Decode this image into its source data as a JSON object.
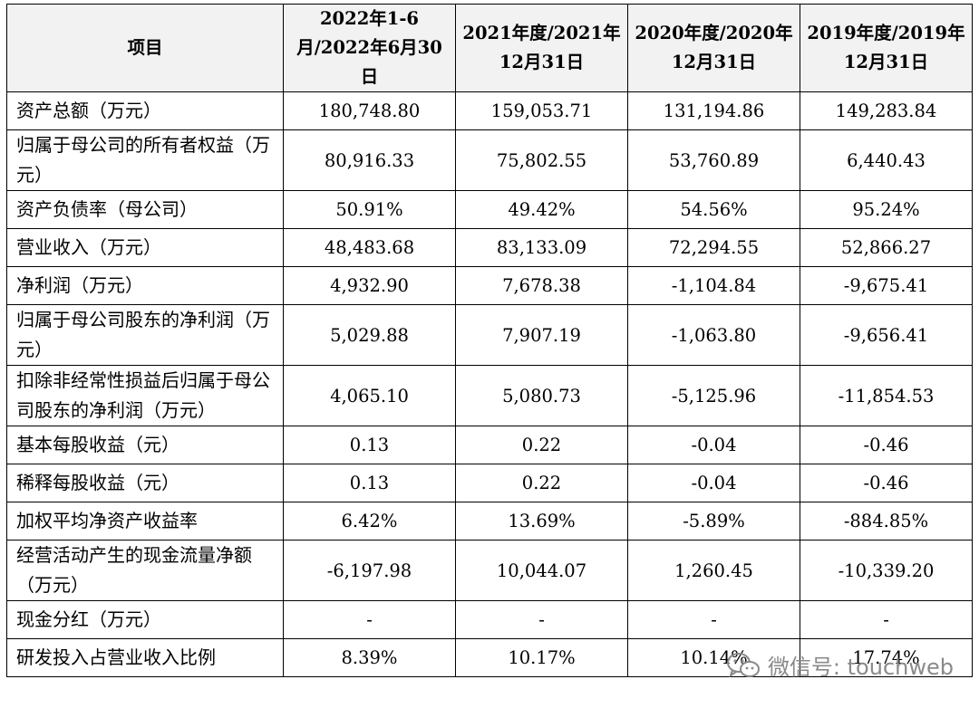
{
  "table": {
    "headers": [
      "项目",
      "2022年1-6月/2022年6月30日",
      "2021年度/2021年12月31日",
      "2020年度/2020年12月31日",
      "2019年度/2019年12月31日"
    ],
    "rows": [
      {
        "label": "资产总额（万元）",
        "values": [
          "180,748.80",
          "159,053.71",
          "131,194.86",
          "149,283.84"
        ]
      },
      {
        "label": "归属于母公司的所有者权益（万元）",
        "values": [
          "80,916.33",
          "75,802.55",
          "53,760.89",
          "6,440.43"
        ]
      },
      {
        "label": "资产负债率（母公司）",
        "values": [
          "50.91%",
          "49.42%",
          "54.56%",
          "95.24%"
        ]
      },
      {
        "label": "营业收入（万元）",
        "values": [
          "48,483.68",
          "83,133.09",
          "72,294.55",
          "52,866.27"
        ]
      },
      {
        "label": "净利润（万元）",
        "values": [
          "4,932.90",
          "7,678.38",
          "-1,104.84",
          "-9,675.41"
        ]
      },
      {
        "label": "归属于母公司股东的净利润（万元）",
        "values": [
          "5,029.88",
          "7,907.19",
          "-1,063.80",
          "-9,656.41"
        ]
      },
      {
        "label": "扣除非经常性损益后归属于母公司股东的净利润（万元）",
        "values": [
          "4,065.10",
          "5,080.73",
          "-5,125.96",
          "-11,854.53"
        ]
      },
      {
        "label": "基本每股收益（元）",
        "values": [
          "0.13",
          "0.22",
          "-0.04",
          "-0.46"
        ]
      },
      {
        "label": "稀释每股收益（元）",
        "values": [
          "0.13",
          "0.22",
          "-0.04",
          "-0.46"
        ]
      },
      {
        "label": "加权平均净资产收益率",
        "values": [
          "6.42%",
          "13.69%",
          "-5.89%",
          "-884.85%"
        ]
      },
      {
        "label": "经营活动产生的现金流量净额（万元）",
        "values": [
          "-6,197.98",
          "10,044.07",
          "1,260.45",
          "-10,339.20"
        ]
      },
      {
        "label": "现金分红（万元）",
        "values": [
          "-",
          "-",
          "-",
          "-"
        ]
      },
      {
        "label": "研发投入占营业收入比例",
        "values": [
          "8.39%",
          "10.17%",
          "10.14%",
          "17.74%"
        ]
      }
    ]
  },
  "watermark": {
    "text": "微信号: touchweb",
    "icon": "wechat-icon",
    "color": "#8a8a8a"
  }
}
